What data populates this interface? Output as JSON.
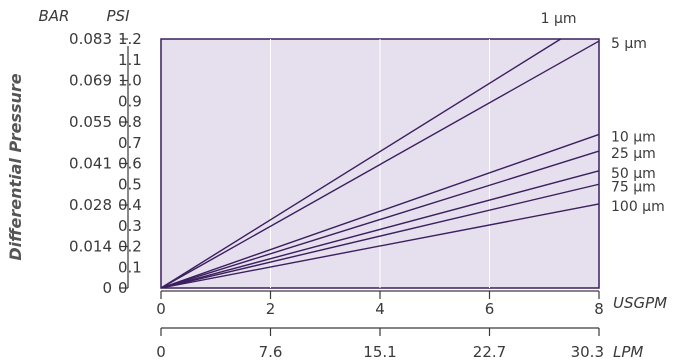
{
  "chart_data": {
    "type": "line",
    "title": "",
    "ylabel": "Differential Pressure",
    "grid": true,
    "plot_background": "#e6dfee",
    "line_color": "#3b1f5e",
    "primary_x": {
      "unit": "USGPM",
      "range": [
        0,
        8
      ],
      "ticks": [
        "0",
        "2",
        "4",
        "6",
        "8"
      ]
    },
    "secondary_x": {
      "unit": "LPM",
      "ticks": [
        "0",
        "7.6",
        "15.1",
        "22.7",
        "30.3"
      ]
    },
    "psi_axis": {
      "unit": "PSI",
      "range": [
        0,
        1.2
      ],
      "ticks": [
        "0",
        "0.1",
        "0.2",
        "0.3",
        "0.4",
        "0.5",
        "0.6",
        "0.7",
        "0.8",
        "0.9",
        "1.0",
        "1.1",
        "1.2"
      ]
    },
    "bar_axis": {
      "unit": "BAR",
      "ticks": [
        {
          "label": "0",
          "psi": 0
        },
        {
          "label": "0.014",
          "psi": 0.2
        },
        {
          "label": "0.028",
          "psi": 0.4
        },
        {
          "label": "0.041",
          "psi": 0.6
        },
        {
          "label": "0.055",
          "psi": 0.8
        },
        {
          "label": "0.069",
          "psi": 1.0
        },
        {
          "label": "0.083",
          "psi": 1.2
        }
      ]
    },
    "series": [
      {
        "name": "1 µm",
        "points": [
          [
            0,
            0
          ],
          [
            7.3,
            1.2
          ]
        ]
      },
      {
        "name": "5 µm",
        "points": [
          [
            0,
            0
          ],
          [
            8,
            1.19
          ]
        ]
      },
      {
        "name": "10 µm",
        "points": [
          [
            0,
            0
          ],
          [
            8,
            0.74
          ]
        ]
      },
      {
        "name": "25 µm",
        "points": [
          [
            0,
            0
          ],
          [
            8,
            0.66
          ]
        ]
      },
      {
        "name": "50 µm",
        "points": [
          [
            0,
            0
          ],
          [
            8,
            0.565
          ]
        ]
      },
      {
        "name": "75 µm",
        "points": [
          [
            0,
            0
          ],
          [
            8,
            0.5
          ]
        ]
      },
      {
        "name": "100 µm",
        "points": [
          [
            0,
            0
          ],
          [
            8,
            0.405
          ]
        ]
      }
    ]
  }
}
